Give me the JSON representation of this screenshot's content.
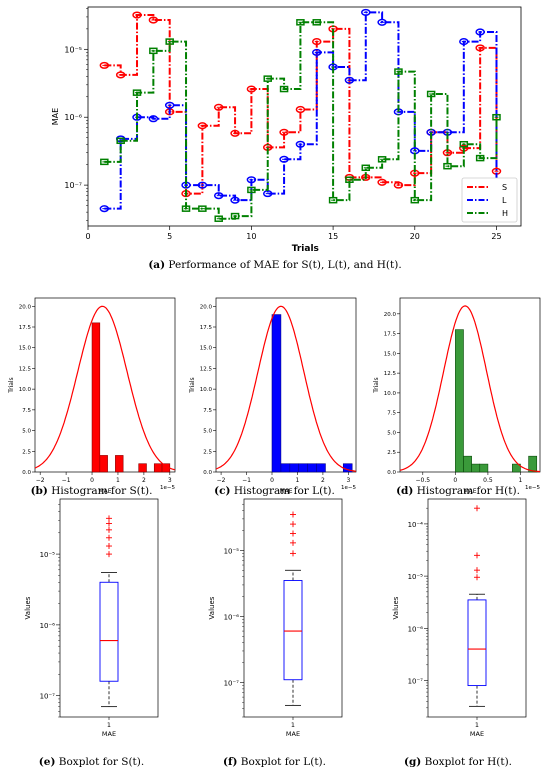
{
  "captions": {
    "a": {
      "label": "(a)",
      "text": "Performance of MAE for S(t), L(t), and H(t)."
    },
    "b": {
      "label": "(b)",
      "text": "Histogram for S(t)."
    },
    "c": {
      "label": "(c)",
      "text": "Histogram for L(t)."
    },
    "d": {
      "label": "(d)",
      "text": "Histogram for H(t)."
    },
    "e": {
      "label": "(e)",
      "text": "Boxplot for S(t)."
    },
    "f": {
      "label": "(f)",
      "text": "Boxplot for L(t)."
    },
    "g": {
      "label": "(g)",
      "text": "Boxplot for H(t)."
    }
  },
  "chart_data": [
    {
      "id": "a",
      "type": "line",
      "title": "",
      "xlabel": "Trials",
      "ylabel": "MAE",
      "yscale": "log",
      "xlim": [
        0,
        26.5
      ],
      "ylim": [
        2.5e-08,
        4.2e-05
      ],
      "xticks": [
        0,
        5,
        10,
        15,
        20,
        25
      ],
      "yticks": [
        {
          "v": 1e-07,
          "label": "10⁻⁷"
        },
        {
          "v": 1e-06,
          "label": "10⁻⁶"
        },
        {
          "v": 1e-05,
          "label": "10⁻⁵"
        }
      ],
      "legend": "bottom-right",
      "x": [
        1,
        2,
        3,
        4,
        5,
        6,
        7,
        8,
        9,
        10,
        11,
        12,
        13,
        14,
        15,
        16,
        17,
        18,
        19,
        20,
        21,
        22,
        23,
        24,
        25
      ],
      "series": [
        {
          "name": "S",
          "color": "#ff0000",
          "marker": "circle",
          "values": [
            5.8e-06,
            4.2e-06,
            3.2e-05,
            2.7e-05,
            1.2e-06,
            7.5e-08,
            7.5e-07,
            1.4e-06,
            5.8e-07,
            2.6e-06,
            3.6e-07,
            6e-07,
            1.3e-06,
            1.3e-05,
            2e-05,
            1.3e-07,
            1.3e-07,
            1.1e-07,
            1e-07,
            1.5e-07,
            6e-07,
            3e-07,
            3.5e-07,
            1.05e-05,
            1.6e-07
          ]
        },
        {
          "name": "L",
          "color": "#0000ff",
          "marker": "circle",
          "values": [
            4.5e-08,
            4.8e-07,
            1e-06,
            9.5e-07,
            1.5e-06,
            1e-07,
            1e-07,
            7e-08,
            6e-08,
            1.2e-07,
            7.5e-08,
            2.4e-07,
            4e-07,
            9e-06,
            5.5e-06,
            3.5e-06,
            3.5e-05,
            2.5e-05,
            1.2e-06,
            3.2e-07,
            6e-07,
            6e-07,
            1.3e-05,
            1.8e-05,
            1e-07
          ]
        },
        {
          "name": "H",
          "color": "#008000",
          "marker": "square",
          "values": [
            2.2e-07,
            4.5e-07,
            2.3e-06,
            9.5e-06,
            1.3e-05,
            4.5e-08,
            4.5e-08,
            3.2e-08,
            3.5e-08,
            8.5e-08,
            3.7e-06,
            2.6e-06,
            2.5e-05,
            2.5e-05,
            6e-08,
            1.2e-07,
            1.8e-07,
            2.4e-07,
            4.7e-06,
            6e-08,
            2.2e-06,
            1.9e-07,
            4e-07,
            2.5e-07,
            1e-06
          ]
        }
      ]
    },
    {
      "id": "b",
      "type": "bar",
      "subtype": "histogram",
      "xlabel": "MAE",
      "ylabel": "Trials",
      "color": "#ff0000",
      "edge": "#8b0000",
      "scale_note": "1e−5",
      "xlim": [
        -2.2,
        3.2
      ],
      "ylim": [
        0,
        21
      ],
      "xticks": [
        -2,
        -1,
        0,
        1,
        2,
        3
      ],
      "yticks": [
        0,
        2.5,
        5,
        7.5,
        10,
        12.5,
        15,
        17.5,
        20
      ],
      "bin_edges": [
        0,
        0.3,
        0.6,
        0.9,
        1.2,
        1.5,
        1.8,
        2.1,
        2.4,
        2.7,
        3.0
      ],
      "values": [
        18,
        2,
        0,
        2,
        0,
        0,
        1,
        0,
        1,
        1
      ],
      "curve": {
        "mean": 0.4,
        "sigma": 0.95,
        "peak": 20
      }
    },
    {
      "id": "c",
      "type": "bar",
      "subtype": "histogram",
      "xlabel": "MAE",
      "ylabel": "Trials",
      "color": "#0000ff",
      "edge": "#00008b",
      "scale_note": "1e−5",
      "xlim": [
        -2.2,
        3.3
      ],
      "ylim": [
        0,
        21
      ],
      "xticks": [
        -2,
        -1,
        0,
        1,
        2,
        3
      ],
      "yticks": [
        0,
        2.5,
        5,
        7.5,
        10,
        12.5,
        15,
        17.5,
        20
      ],
      "bin_edges": [
        0,
        0.35,
        0.7,
        1.05,
        1.4,
        1.75,
        2.1,
        2.45,
        2.8,
        3.15
      ],
      "values": [
        19,
        1,
        1,
        1,
        1,
        1,
        0,
        0,
        1
      ],
      "curve": {
        "mean": 0.35,
        "sigma": 0.9,
        "peak": 20
      }
    },
    {
      "id": "d",
      "type": "bar",
      "subtype": "histogram",
      "xlabel": "MAE",
      "ylabel": "Trials",
      "color": "#3a9a3a",
      "edge": "#0a4a0a",
      "scale_note": "1e−5",
      "xlim": [
        -0.85,
        1.3
      ],
      "ylim": [
        0,
        22
      ],
      "xticks": [
        -0.5,
        0,
        0.5,
        1.0
      ],
      "ytick_labels": [
        "0.0",
        "2.5",
        "5.0",
        "7.5",
        "10.0",
        "12.5",
        "15.0",
        "17.5",
        "20.0"
      ],
      "yticks": [
        0,
        2.5,
        5,
        7.5,
        10,
        12.5,
        15,
        17.5,
        20
      ],
      "bin_edges": [
        0,
        0.125,
        0.25,
        0.375,
        0.5,
        0.625,
        0.75,
        0.875,
        1.0,
        1.125,
        1.25
      ],
      "values": [
        18,
        2,
        1,
        1,
        0,
        0,
        0,
        1,
        0,
        2
      ],
      "curve": {
        "mean": 0.15,
        "sigma": 0.33,
        "peak": 21
      }
    },
    {
      "id": "e",
      "type": "boxplot",
      "xlabel": "MAE",
      "ylabel": "Values",
      "yscale": "log",
      "xticks": [
        "1"
      ],
      "ylim": [
        5e-08,
        6e-05
      ],
      "yticks": [
        {
          "v": 1e-07,
          "label": "10⁻⁷"
        },
        {
          "v": 1e-06,
          "label": "10⁻⁶"
        },
        {
          "v": 1e-05,
          "label": "10⁻⁵"
        }
      ],
      "whisker_low": 7e-08,
      "q1": 1.6e-07,
      "median": 6e-07,
      "q3": 4e-06,
      "whisker_high": 5.5e-06,
      "outliers": [
        1e-05,
        1.3e-05,
        1.7e-05,
        2.2e-05,
        2.7e-05,
        3.2e-05
      ]
    },
    {
      "id": "f",
      "type": "boxplot",
      "xlabel": "MAE",
      "ylabel": "Values",
      "yscale": "log",
      "xticks": [
        "1"
      ],
      "ylim": [
        3e-08,
        6e-05
      ],
      "yticks": [
        {
          "v": 1e-07,
          "label": "10⁻⁷"
        },
        {
          "v": 1e-06,
          "label": "10⁻⁶"
        },
        {
          "v": 1e-05,
          "label": "10⁻⁵"
        }
      ],
      "whisker_low": 4.5e-08,
      "q1": 1.1e-07,
      "median": 6e-07,
      "q3": 3.5e-06,
      "whisker_high": 5e-06,
      "outliers": [
        9e-06,
        1.3e-05,
        1.8e-05,
        2.5e-05,
        3.5e-05
      ]
    },
    {
      "id": "g",
      "type": "boxplot",
      "xlabel": "MAE",
      "ylabel": "Values",
      "yscale": "log",
      "xticks": [
        "1"
      ],
      "ylim": [
        2e-08,
        0.0003
      ],
      "yticks": [
        {
          "v": 1e-07,
          "label": "10⁻⁷"
        },
        {
          "v": 1e-06,
          "label": "10⁻⁶"
        },
        {
          "v": 1e-05,
          "label": "10⁻⁵"
        },
        {
          "v": 0.0001,
          "label": "10⁻⁴"
        }
      ],
      "whisker_low": 3.2e-08,
      "q1": 8e-08,
      "median": 4e-07,
      "q3": 3.5e-06,
      "whisker_high": 4.5e-06,
      "outliers": [
        9.5e-06,
        1.3e-05,
        2.5e-05,
        0.0002
      ]
    }
  ]
}
